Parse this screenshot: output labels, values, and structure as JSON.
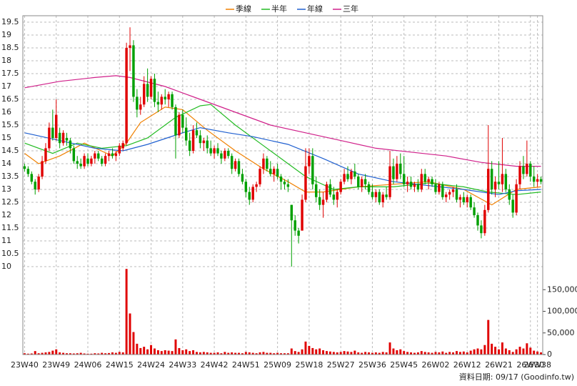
{
  "chart_data": {
    "type": "candlestick",
    "categories": [
      "23W40",
      null,
      null,
      null,
      null,
      null,
      null,
      null,
      null,
      "23W49",
      null,
      null,
      null,
      null,
      null,
      null,
      null,
      null,
      "24W06",
      null,
      null,
      null,
      null,
      null,
      null,
      null,
      null,
      "24W15",
      null,
      null,
      null,
      null,
      null,
      null,
      null,
      null,
      "24W24",
      null,
      null,
      null,
      null,
      null,
      null,
      null,
      null,
      "24W33",
      null,
      null,
      null,
      null,
      null,
      null,
      null,
      null,
      "24W42",
      null,
      null,
      null,
      null,
      null,
      null,
      null,
      null,
      "24W51",
      null,
      null,
      null,
      null,
      null,
      null,
      null,
      null,
      "25W09",
      null,
      null,
      null,
      null,
      null,
      null,
      null,
      null,
      "25W18",
      null,
      null,
      null,
      null,
      null,
      null,
      null,
      null,
      "25W27",
      null,
      null,
      null,
      null,
      null,
      null,
      null,
      null,
      "25W36",
      null,
      null,
      null,
      null,
      null,
      null,
      null,
      null,
      "25W45",
      null,
      null,
      null,
      null,
      null,
      null,
      null,
      null,
      "26W02",
      null,
      null,
      null,
      null,
      null,
      null,
      null,
      null,
      "26W12",
      null,
      null,
      null,
      null,
      null,
      null,
      null,
      null,
      "26W21",
      null,
      null,
      null,
      null,
      null,
      null,
      null,
      null,
      "26W30",
      null,
      "26W38",
      null
    ],
    "ohlc": [
      [
        13.9,
        14.0,
        13.7,
        13.8
      ],
      [
        13.8,
        13.9,
        13.5,
        13.6
      ],
      [
        13.6,
        13.7,
        13.2,
        13.3
      ],
      [
        13.3,
        13.4,
        12.8,
        13.0
      ],
      [
        13.0,
        13.6,
        12.9,
        13.5
      ],
      [
        13.5,
        14.3,
        13.4,
        14.1
      ],
      [
        14.1,
        14.8,
        14.0,
        14.6
      ],
      [
        14.6,
        15.6,
        14.5,
        15.4
      ],
      [
        15.4,
        16.1,
        14.9,
        15.0
      ],
      [
        15.0,
        16.5,
        14.9,
        15.9
      ],
      [
        15.2,
        15.4,
        14.6,
        14.8
      ],
      [
        14.8,
        15.3,
        14.7,
        15.2
      ],
      [
        15.0,
        15.2,
        14.7,
        14.9
      ],
      [
        14.9,
        15.0,
        14.4,
        14.6
      ],
      [
        14.6,
        14.7,
        14.0,
        14.1
      ],
      [
        14.1,
        14.3,
        13.8,
        14.0
      ],
      [
        14.0,
        14.2,
        13.8,
        13.9
      ],
      [
        13.9,
        14.4,
        13.8,
        14.3
      ],
      [
        14.2,
        14.4,
        13.9,
        14.0
      ],
      [
        14.0,
        14.3,
        13.9,
        14.2
      ],
      [
        14.2,
        14.5,
        14.0,
        14.4
      ],
      [
        14.4,
        14.5,
        14.1,
        14.2
      ],
      [
        14.2,
        14.3,
        13.9,
        14.0
      ],
      [
        14.0,
        14.4,
        13.9,
        14.3
      ],
      [
        14.3,
        14.5,
        14.1,
        14.4
      ],
      [
        14.4,
        14.6,
        14.2,
        14.3
      ],
      [
        14.3,
        14.5,
        14.1,
        14.4
      ],
      [
        14.4,
        14.8,
        14.3,
        14.7
      ],
      [
        14.6,
        14.9,
        14.5,
        14.8
      ],
      [
        14.8,
        18.7,
        14.7,
        18.5
      ],
      [
        18.5,
        19.3,
        17.6,
        18.6
      ],
      [
        18.6,
        18.8,
        16.4,
        16.6
      ],
      [
        16.6,
        16.9,
        15.8,
        16.1
      ],
      [
        16.1,
        16.6,
        15.9,
        16.3
      ],
      [
        16.3,
        17.4,
        16.2,
        17.1
      ],
      [
        17.1,
        17.7,
        16.4,
        16.6
      ],
      [
        16.6,
        17.4,
        16.5,
        17.3
      ],
      [
        17.3,
        17.5,
        16.2,
        16.4
      ],
      [
        16.4,
        16.8,
        16.0,
        16.3
      ],
      [
        16.3,
        16.7,
        16.1,
        16.6
      ],
      [
        16.6,
        16.9,
        16.3,
        16.5
      ],
      [
        16.5,
        16.8,
        16.2,
        16.7
      ],
      [
        16.7,
        16.8,
        16.1,
        16.2
      ],
      [
        16.2,
        16.3,
        14.2,
        15.1
      ],
      [
        15.1,
        16.0,
        15.0,
        15.9
      ],
      [
        15.9,
        16.1,
        15.2,
        15.4
      ],
      [
        15.4,
        15.8,
        14.7,
        14.9
      ],
      [
        14.9,
        15.2,
        14.3,
        14.5
      ],
      [
        14.5,
        15.5,
        14.4,
        15.3
      ],
      [
        15.3,
        15.6,
        15.0,
        15.1
      ],
      [
        15.1,
        15.3,
        14.6,
        14.8
      ],
      [
        14.8,
        15.0,
        14.5,
        14.9
      ],
      [
        14.9,
        15.1,
        14.4,
        14.6
      ],
      [
        14.6,
        14.9,
        14.3,
        14.4
      ],
      [
        14.4,
        14.7,
        14.2,
        14.6
      ],
      [
        14.6,
        14.8,
        14.3,
        14.4
      ],
      [
        14.4,
        14.5,
        14.0,
        14.2
      ],
      [
        14.2,
        14.6,
        14.1,
        14.5
      ],
      [
        14.5,
        14.6,
        14.2,
        14.3
      ],
      [
        14.3,
        14.4,
        13.6,
        13.8
      ],
      [
        13.8,
        14.2,
        13.7,
        14.1
      ],
      [
        14.1,
        14.2,
        13.5,
        13.6
      ],
      [
        13.6,
        13.8,
        13.2,
        13.3
      ],
      [
        13.3,
        13.4,
        12.7,
        12.9
      ],
      [
        12.9,
        13.1,
        12.4,
        12.6
      ],
      [
        12.6,
        13.2,
        12.5,
        13.1
      ],
      [
        13.1,
        13.3,
        12.9,
        13.2
      ],
      [
        13.2,
        13.9,
        13.1,
        13.8
      ],
      [
        13.8,
        14.4,
        13.6,
        14.2
      ],
      [
        14.2,
        14.3,
        13.7,
        13.8
      ],
      [
        13.8,
        14.1,
        13.5,
        13.6
      ],
      [
        13.6,
        13.9,
        13.3,
        13.8
      ],
      [
        13.8,
        14.0,
        13.4,
        13.5
      ],
      [
        13.5,
        13.6,
        13.0,
        13.3
      ],
      [
        13.3,
        13.4,
        13.0,
        13.2
      ],
      [
        13.2,
        13.4,
        12.9,
        13.1
      ],
      [
        12.4,
        12.4,
        10.0,
        11.8
      ],
      [
        11.8,
        12.0,
        11.2,
        11.4
      ],
      [
        11.4,
        11.5,
        10.9,
        11.2
      ],
      [
        11.4,
        12.8,
        11.4,
        12.6
      ],
      [
        12.6,
        14.6,
        12.5,
        13.9
      ],
      [
        13.9,
        14.6,
        13.6,
        14.3
      ],
      [
        14.3,
        14.6,
        13.0,
        13.2
      ],
      [
        13.2,
        13.5,
        12.5,
        12.7
      ],
      [
        12.7,
        13.0,
        12.2,
        12.4
      ],
      [
        12.4,
        12.9,
        11.9,
        12.6
      ],
      [
        12.6,
        13.3,
        12.5,
        13.2
      ],
      [
        13.2,
        13.4,
        12.7,
        12.8
      ],
      [
        12.8,
        13.1,
        12.4,
        12.6
      ],
      [
        12.6,
        13.0,
        12.3,
        12.9
      ],
      [
        12.9,
        13.4,
        12.8,
        13.3
      ],
      [
        13.3,
        13.8,
        13.2,
        13.6
      ],
      [
        13.6,
        13.9,
        13.3,
        13.4
      ],
      [
        13.4,
        13.8,
        13.2,
        13.7
      ],
      [
        13.7,
        14.0,
        13.4,
        13.5
      ],
      [
        13.5,
        13.6,
        13.0,
        13.1
      ],
      [
        13.1,
        13.5,
        12.9,
        13.4
      ],
      [
        13.4,
        13.6,
        13.0,
        13.2
      ],
      [
        13.2,
        13.3,
        12.8,
        12.9
      ],
      [
        12.9,
        13.2,
        12.6,
        12.7
      ],
      [
        12.7,
        13.0,
        12.5,
        12.9
      ],
      [
        12.9,
        13.0,
        12.4,
        12.5
      ],
      [
        12.5,
        12.9,
        12.3,
        12.8
      ],
      [
        12.8,
        13.1,
        12.6,
        12.7
      ],
      [
        12.7,
        14.5,
        12.6,
        13.9
      ],
      [
        13.9,
        14.2,
        13.2,
        13.4
      ],
      [
        13.4,
        14.3,
        13.3,
        14.0
      ],
      [
        14.0,
        14.4,
        13.4,
        13.6
      ],
      [
        13.6,
        14.3,
        13.1,
        13.2
      ],
      [
        13.2,
        13.5,
        12.9,
        13.3
      ],
      [
        13.3,
        13.5,
        13.0,
        13.1
      ],
      [
        13.1,
        13.3,
        12.9,
        13.2
      ],
      [
        13.2,
        13.4,
        12.9,
        13.0
      ],
      [
        13.0,
        13.8,
        12.9,
        13.6
      ],
      [
        13.6,
        13.8,
        13.2,
        13.3
      ],
      [
        13.3,
        13.5,
        13.0,
        13.4
      ],
      [
        13.4,
        13.5,
        13.1,
        13.2
      ],
      [
        13.2,
        13.4,
        12.8,
        12.9
      ],
      [
        12.9,
        13.3,
        12.8,
        13.2
      ],
      [
        13.2,
        13.3,
        12.6,
        12.7
      ],
      [
        12.7,
        12.9,
        12.5,
        12.8
      ],
      [
        12.8,
        13.0,
        12.6,
        12.9
      ],
      [
        12.9,
        13.1,
        12.7,
        13.0
      ],
      [
        13.0,
        13.2,
        12.5,
        12.6
      ],
      [
        12.6,
        12.8,
        12.3,
        12.7
      ],
      [
        12.7,
        12.9,
        12.4,
        12.5
      ],
      [
        12.5,
        12.8,
        12.3,
        12.7
      ],
      [
        12.7,
        12.8,
        12.2,
        12.3
      ],
      [
        12.3,
        12.5,
        11.9,
        12.0
      ],
      [
        12.0,
        12.1,
        11.4,
        11.6
      ],
      [
        11.6,
        11.8,
        11.1,
        11.3
      ],
      [
        11.3,
        12.4,
        11.2,
        12.2
      ],
      [
        12.2,
        15.5,
        12.1,
        13.8
      ],
      [
        13.8,
        14.1,
        12.8,
        13.0
      ],
      [
        13.0,
        13.5,
        12.7,
        13.3
      ],
      [
        13.3,
        14.1,
        13.0,
        13.2
      ],
      [
        13.2,
        15.0,
        12.9,
        13.6
      ],
      [
        13.6,
        13.8,
        12.9,
        13.0
      ],
      [
        13.0,
        13.2,
        12.4,
        12.6
      ],
      [
        12.6,
        12.8,
        11.9,
        12.1
      ],
      [
        12.1,
        13.4,
        12.0,
        13.2
      ],
      [
        13.2,
        14.1,
        13.0,
        13.9
      ],
      [
        13.9,
        14.3,
        13.4,
        13.6
      ],
      [
        13.6,
        14.9,
        13.5,
        14.0
      ],
      [
        14.0,
        14.1,
        13.3,
        13.5
      ],
      [
        13.5,
        13.9,
        13.1,
        13.3
      ],
      [
        13.3,
        13.6,
        13.1,
        13.4
      ],
      [
        13.4,
        13.5,
        13.2,
        13.3
      ]
    ],
    "up_color": "#e00000",
    "down_color": "#00a000",
    "series": [
      {
        "name": "季線",
        "color": "#f08000",
        "x": [
          0,
          4,
          10,
          17,
          25,
          29,
          33,
          40,
          45,
          52,
          60,
          68,
          75,
          80,
          85,
          95,
          105,
          115,
          125,
          133,
          140,
          147
        ],
        "values": [
          14.4,
          14.0,
          14.3,
          14.8,
          14.3,
          14.8,
          15.6,
          16.2,
          16.1,
          15.3,
          14.5,
          13.8,
          13.3,
          12.9,
          12.9,
          13.1,
          13.2,
          13.3,
          13.0,
          12.4,
          13.0,
          13.1
        ]
      },
      {
        "name": "半年",
        "color": "#22bb22",
        "x": [
          0,
          8,
          15,
          22,
          29,
          35,
          43,
          50,
          53,
          60,
          68,
          75,
          80,
          88,
          95,
          105,
          115,
          125,
          132,
          140,
          147
        ],
        "values": [
          14.8,
          14.4,
          14.8,
          14.6,
          14.7,
          15.0,
          15.8,
          16.25,
          16.3,
          15.5,
          14.7,
          14.0,
          13.5,
          13.0,
          13.1,
          13.1,
          13.25,
          13.1,
          12.9,
          12.8,
          12.9
        ]
      },
      {
        "name": "年線",
        "color": "#2060d0",
        "x": [
          0,
          10,
          20,
          28,
          35,
          45,
          50,
          58,
          65,
          75,
          85,
          95,
          105,
          115,
          125,
          135,
          140,
          147
        ],
        "values": [
          15.2,
          14.9,
          14.6,
          14.5,
          14.75,
          15.2,
          15.4,
          15.2,
          15.05,
          14.75,
          14.2,
          13.6,
          13.3,
          13.15,
          13.0,
          12.8,
          12.95,
          13.0
        ]
      },
      {
        "name": "三年",
        "color": "#d0208a",
        "x": [
          0,
          10,
          20,
          26,
          30,
          40,
          50,
          60,
          70,
          80,
          90,
          100,
          110,
          120,
          130,
          140,
          147
        ],
        "values": [
          16.95,
          17.2,
          17.35,
          17.42,
          17.35,
          17.0,
          16.5,
          16.0,
          15.5,
          15.2,
          14.9,
          14.6,
          14.45,
          14.3,
          14.05,
          13.9,
          13.9
        ]
      }
    ],
    "ylim": [
      9.75,
      19.75
    ],
    "yticks": [
      10,
      10.5,
      11,
      11.5,
      12,
      12.5,
      13,
      13.5,
      14,
      14.5,
      15,
      15.5,
      16,
      16.5,
      17,
      17.5,
      18,
      18.5,
      19,
      19.5
    ],
    "grid": true,
    "volume": {
      "color": "#e00000",
      "ylim": [
        0,
        200000
      ],
      "yticks": [
        0,
        {
          "value": 50000,
          "label": "50,000"
        },
        {
          "value": 100000,
          "label": "100,000"
        },
        {
          "value": 150000,
          "label": "150,000"
        }
      ],
      "values": [
        3000,
        2000,
        2500,
        8000,
        3000,
        4000,
        5000,
        6000,
        9000,
        12000,
        5000,
        4000,
        3000,
        3000,
        2500,
        3000,
        4000,
        2500,
        2000,
        2000,
        3000,
        2500,
        4000,
        3000,
        3500,
        5000,
        4000,
        6000,
        5000,
        198000,
        95000,
        52000,
        25000,
        15000,
        18000,
        12000,
        22000,
        14000,
        10000,
        8000,
        10000,
        9000,
        8000,
        35000,
        15000,
        10000,
        12000,
        8000,
        10000,
        6000,
        5000,
        6000,
        5000,
        4000,
        4000,
        5000,
        3000,
        6000,
        4000,
        5000,
        4000,
        4000,
        3000,
        6000,
        5000,
        4000,
        3000,
        5000,
        6000,
        4000,
        4000,
        3000,
        4000,
        3000,
        3000,
        3000,
        14000,
        8000,
        6000,
        12000,
        30000,
        20000,
        15000,
        12000,
        14000,
        10000,
        8000,
        7000,
        6000,
        5000,
        6000,
        8000,
        7000,
        6000,
        9000,
        5000,
        4000,
        6000,
        5000,
        4000,
        5000,
        4000,
        6000,
        5000,
        28000,
        14000,
        10000,
        12000,
        8000,
        6000,
        5000,
        4000,
        5000,
        8000,
        6000,
        5000,
        4000,
        6000,
        5000,
        7000,
        4000,
        6000,
        5000,
        8000,
        6000,
        7000,
        5000,
        9000,
        12000,
        14000,
        12000,
        22000,
        80000,
        25000,
        18000,
        12000,
        28000,
        14000,
        10000,
        6000,
        12000,
        18000,
        14000,
        26000,
        16000,
        9000,
        7000,
        5000
      ]
    },
    "note": "資料日期: 09/17 (Goodinfo.tw)"
  }
}
